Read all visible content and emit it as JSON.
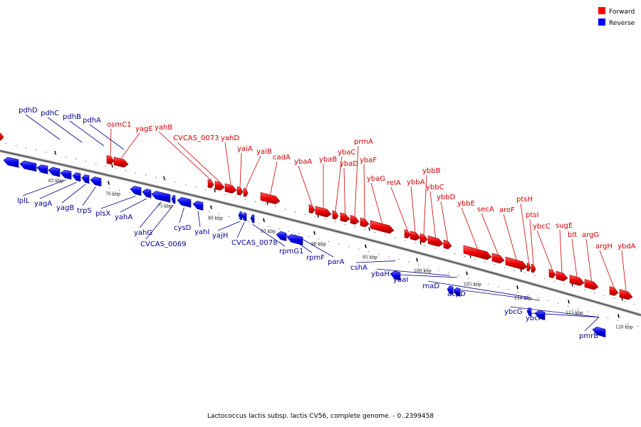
{
  "legend": {
    "forward_label": "Forward",
    "reverse_label": "Reverse",
    "forward_color": "#ff0000",
    "reverse_color": "#0000ff"
  },
  "caption": "Lactococcus lactis subsp. lactis CV56, complete genome. - 0..2399458",
  "scale_ticks": [
    "65 kbp",
    "70 kbp",
    "75 kbp",
    "80 kbp",
    "85 kbp",
    "90 kbp",
    "95 kbp",
    "100 kbp",
    "105 kbp",
    "110 kbp",
    "115 kbp",
    "120 kbp"
  ],
  "forward_genes": [
    "osmC1",
    "yagE",
    "yahB",
    "CVCAS_0073",
    "yahD",
    "yaiA",
    "yaiB",
    "cadA",
    "ybaA",
    "ybaB",
    "ybaC",
    "ybaD",
    "prmA",
    "ybaF",
    "ybaG",
    "relA",
    "ybbA",
    "ybbB",
    "ybbC",
    "ybbD",
    "ybbE",
    "secA",
    "aroF",
    "ptsH",
    "ptsI",
    "ybcC",
    "sugE",
    "blt",
    "argG",
    "argH",
    "ybdA"
  ],
  "reverse_genes": [
    "pdhD",
    "pdhC",
    "pdhB",
    "pdhA",
    "lplL",
    "yagA",
    "yagB",
    "trpS",
    "plsX",
    "yahA",
    "yahG",
    "CVCAS_0069",
    "cysD",
    "yahI",
    "yajH",
    "CVCAS_0078",
    "rpmG1",
    "rpmF",
    "parA",
    "cshA",
    "ybaH",
    "ybaI",
    "rnaD",
    "acpD",
    "ybcG",
    "ybcH",
    "pmrB"
  ]
}
